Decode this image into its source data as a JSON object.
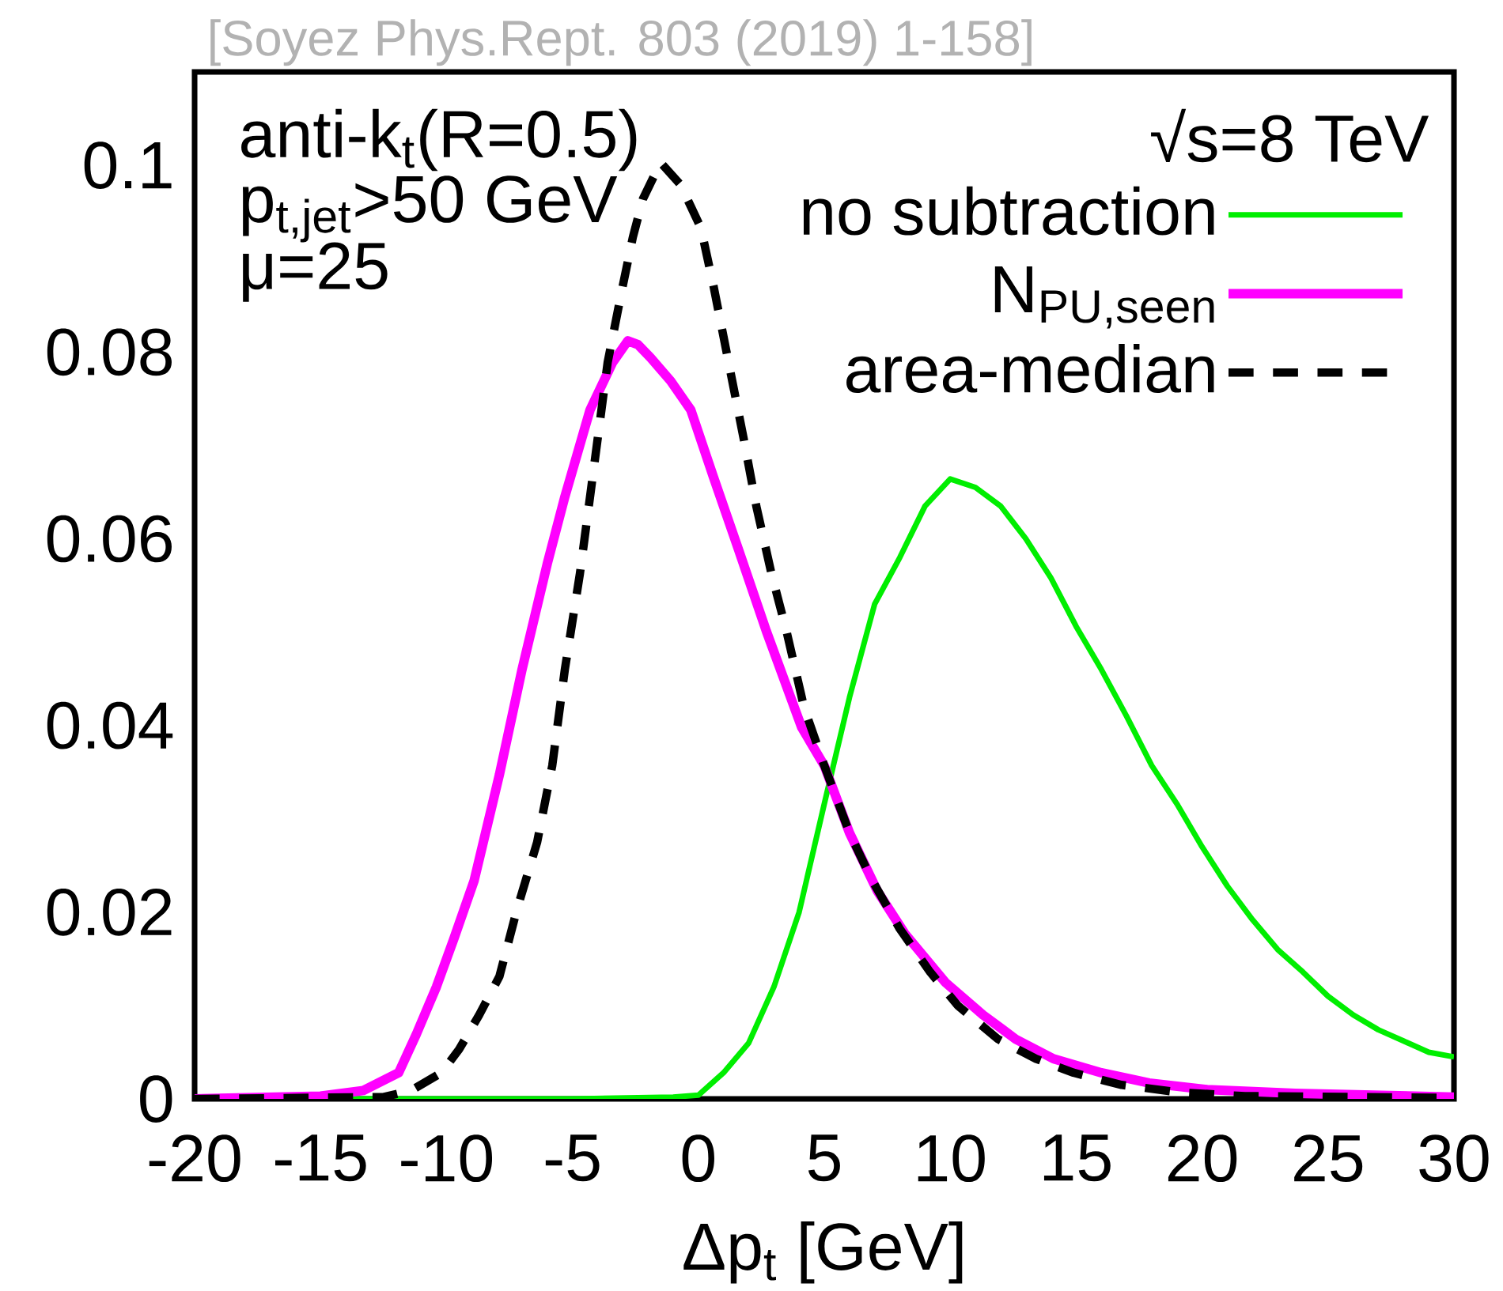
{
  "chart_data": {
    "type": "line",
    "xlabel": "Δp$_{t}$ [GeV]",
    "xlim": [
      -20,
      30
    ],
    "ylim": [
      0,
      0.11
    ],
    "xticks": [
      -20,
      -15,
      -10,
      -5,
      0,
      5,
      10,
      15,
      20,
      25,
      30
    ],
    "yticks": [
      0,
      0.02,
      0.04,
      0.06,
      0.08,
      0.1
    ],
    "grid": false,
    "legend": "top right",
    "marker": "none",
    "annotations": [
      "[Soyez Phys.Rept. 803 (2019) 1-158]",
      "anti-k$_{t}$(R=0.5)",
      "p$_{t,jet}$>50 GeV",
      "μ=25",
      "√s=8 TeV"
    ],
    "series": [
      {
        "name": "no subtraction",
        "color": "#00ee00",
        "line_style": "solid",
        "x": [
          -20,
          -5,
          -1,
          0,
          1,
          2,
          3,
          4,
          5,
          6,
          7,
          8,
          9,
          10,
          11,
          12,
          13,
          14,
          15,
          16,
          17,
          18,
          19,
          20,
          21,
          22,
          23,
          24,
          25,
          26,
          27,
          28,
          29,
          30
        ],
        "values": [
          0,
          0,
          0.0002,
          0.0004,
          0.0028,
          0.006,
          0.012,
          0.02,
          0.0316,
          0.043,
          0.053,
          0.058,
          0.0635,
          0.0664,
          0.0655,
          0.0635,
          0.06,
          0.0558,
          0.0506,
          0.046,
          0.041,
          0.0357,
          0.0316,
          0.027,
          0.0228,
          0.0192,
          0.016,
          0.0136,
          0.011,
          0.009,
          0.0074,
          0.0062,
          0.005,
          0.0045
        ]
      },
      {
        "name": "N$_{PU,seen}$",
        "color": "#ff00ff",
        "line_style": "solid",
        "x": [
          -20,
          -15,
          -13.3,
          -11.9,
          -11.2,
          -10.4,
          -9.7,
          -8.9,
          -7.9,
          -7,
          -6,
          -5.3,
          -4.3,
          -3.4,
          -2.8,
          -2.4,
          -1.9,
          -1.1,
          -0.3,
          0.6,
          1.6,
          2.7,
          4.1,
          5,
          6,
          7.1,
          8.2,
          9.8,
          11.3,
          12.6,
          14.1,
          16,
          17.9,
          20.2,
          23.7,
          30
        ],
        "values": [
          0,
          0.0003,
          0.0009,
          0.0028,
          0.0069,
          0.012,
          0.0172,
          0.0234,
          0.0347,
          0.046,
          0.0573,
          0.0645,
          0.0738,
          0.0789,
          0.0812,
          0.0808,
          0.0794,
          0.0769,
          0.0738,
          0.0666,
          0.0588,
          0.0501,
          0.0398,
          0.0357,
          0.0285,
          0.0223,
          0.0177,
          0.0125,
          0.009,
          0.0064,
          0.0043,
          0.0028,
          0.0017,
          0.001,
          0.0006,
          0.0002
        ]
      },
      {
        "name": "area-median",
        "color": "#000000",
        "line_style": "dashed",
        "x": [
          -20,
          -12.5,
          -11.4,
          -10.2,
          -9.5,
          -8.7,
          -7.9,
          -7.2,
          -6.4,
          -5.8,
          -5.3,
          -4.7,
          -4.1,
          -3.6,
          -3,
          -2.6,
          -2.2,
          -1.5,
          -0.7,
          0.1,
          0.6,
          1.2,
          1.8,
          2.3,
          2.9,
          3.5,
          4.2,
          5,
          6,
          6.9,
          8,
          9.2,
          10.3,
          11.9,
          13.4,
          14.9,
          16.8,
          19.1,
          21.7,
          30
        ],
        "values": [
          0,
          0.0002,
          0.0009,
          0.0028,
          0.0053,
          0.009,
          0.0131,
          0.0203,
          0.0275,
          0.0357,
          0.046,
          0.0563,
          0.0686,
          0.0789,
          0.0871,
          0.0923,
          0.0964,
          0.1003,
          0.0979,
          0.0933,
          0.0871,
          0.0789,
          0.0707,
          0.0635,
          0.0563,
          0.0501,
          0.0419,
          0.0357,
          0.0285,
          0.0234,
          0.0182,
          0.0136,
          0.01,
          0.0064,
          0.0043,
          0.0028,
          0.0015,
          0.0007,
          0.0003,
          0.0001
        ]
      }
    ]
  }
}
